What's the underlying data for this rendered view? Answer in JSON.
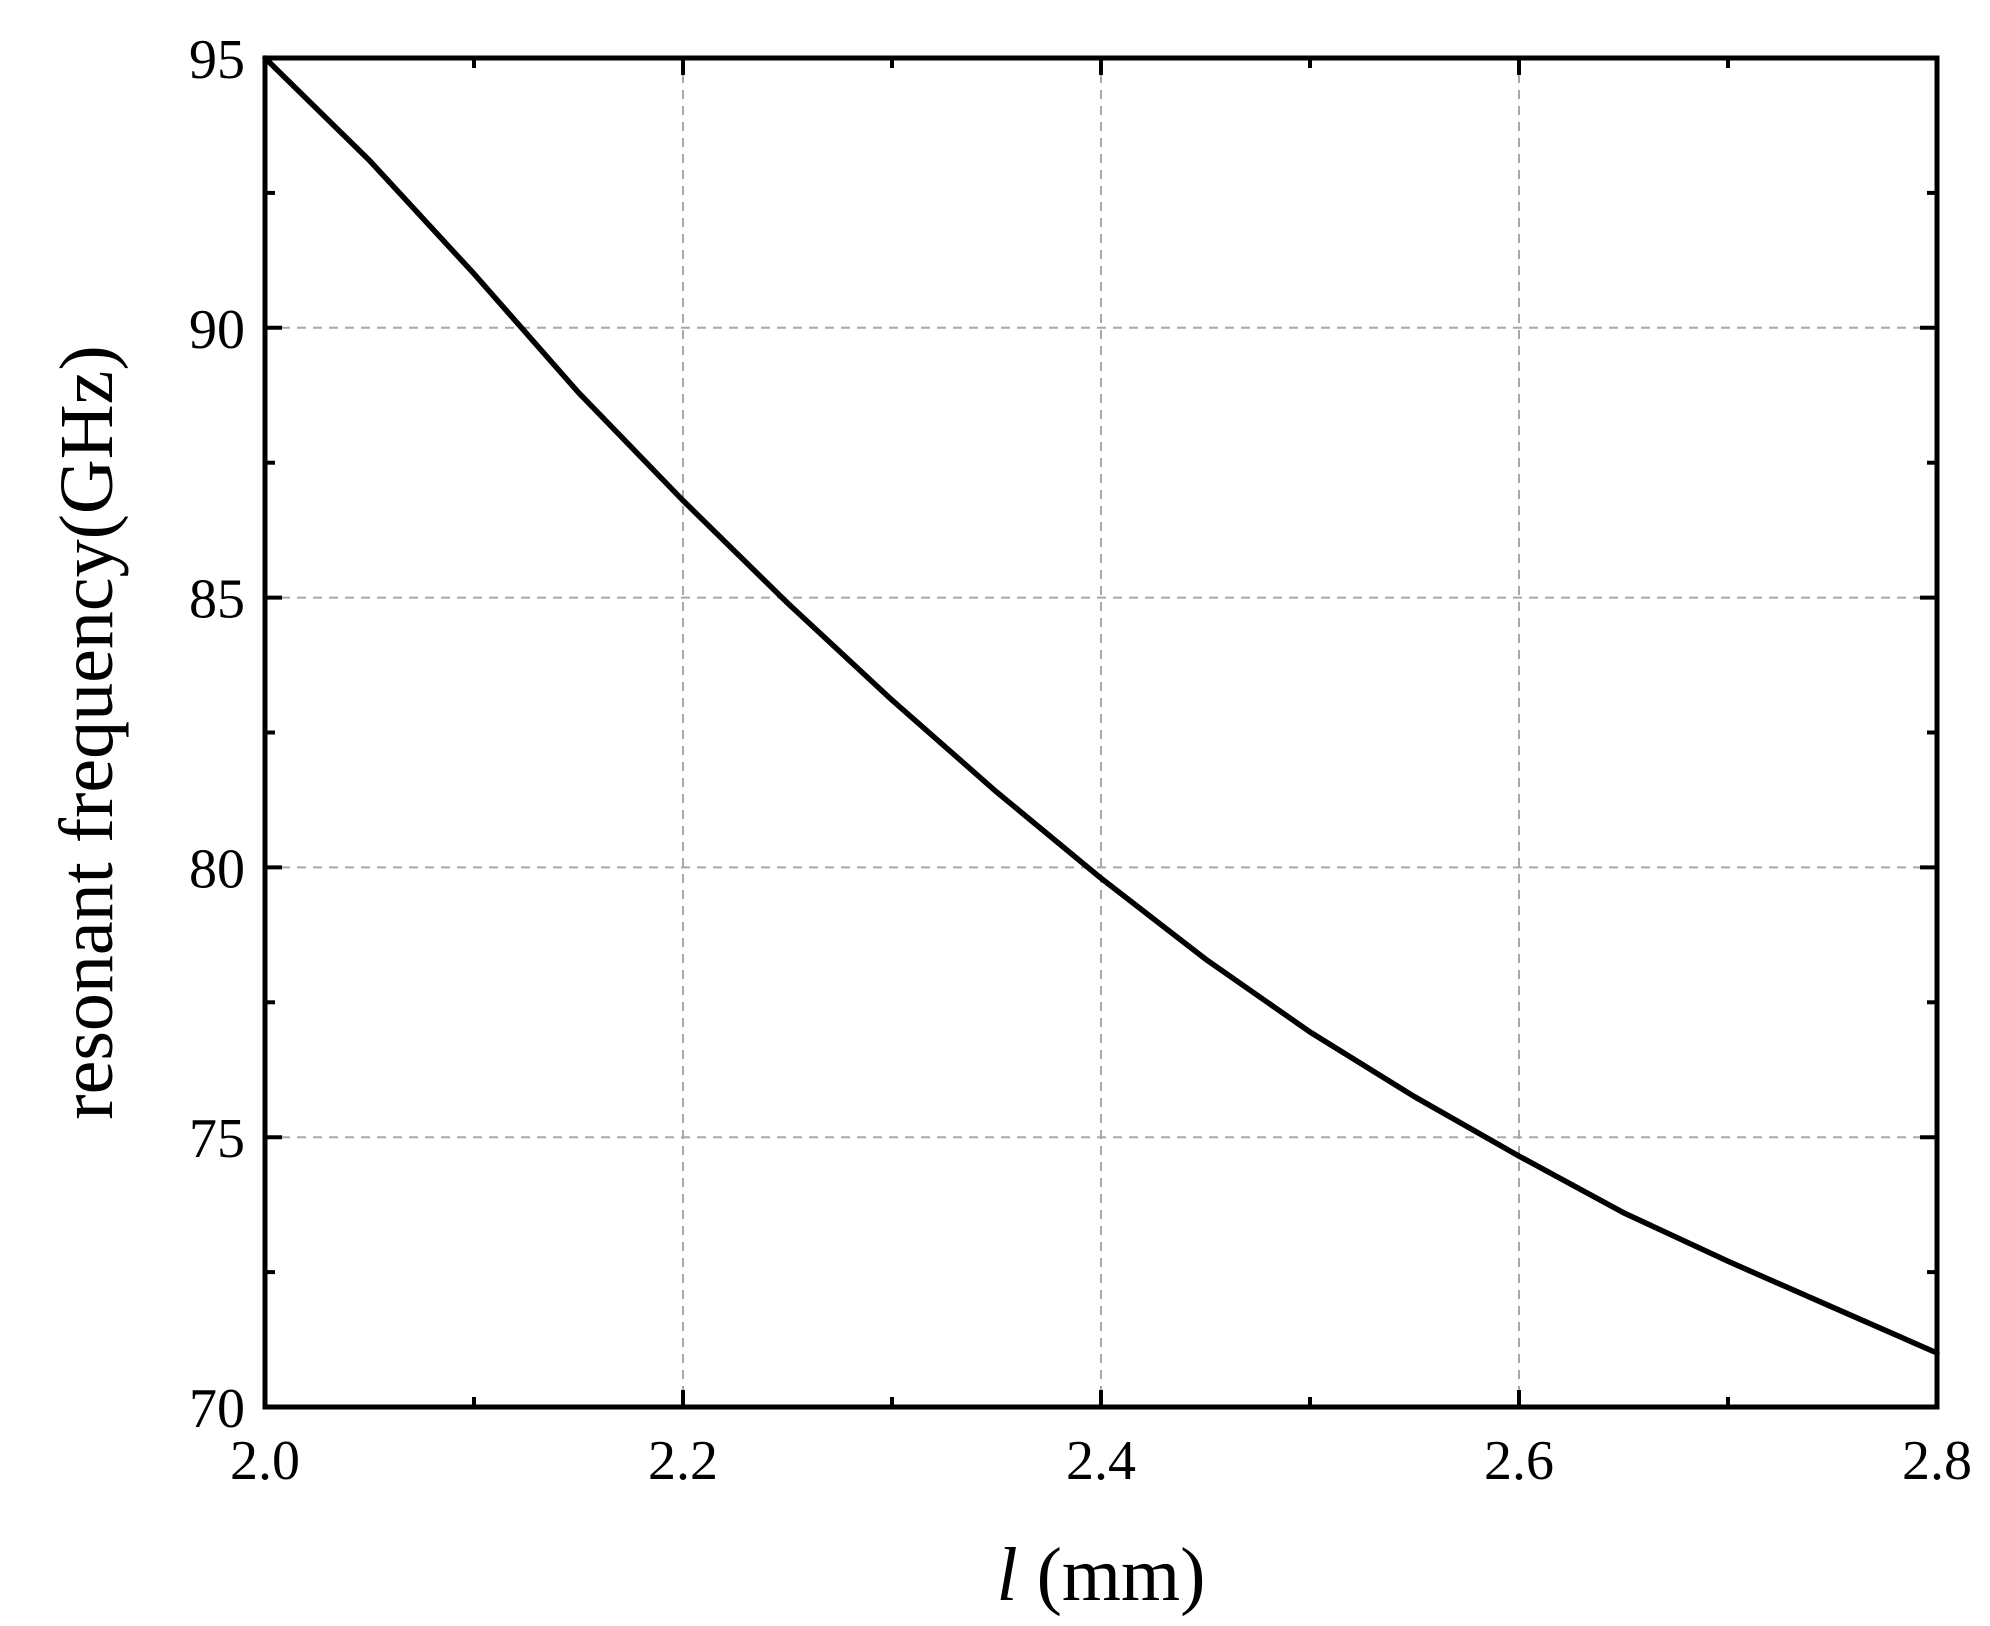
{
  "chart_data": {
    "type": "line",
    "xlabel_var": "l",
    "xlabel_unit": " (mm)",
    "ylabel": "resonant frequency(GHz)",
    "xlim": [
      2.0,
      2.8
    ],
    "ylim": [
      70,
      95
    ],
    "x_ticks": [
      "2.0",
      "2.2",
      "2.4",
      "2.6",
      "2.8"
    ],
    "y_ticks": [
      "70",
      "75",
      "80",
      "85",
      "90",
      "95"
    ],
    "x_tick_values": [
      2.0,
      2.2,
      2.4,
      2.6,
      2.8
    ],
    "y_tick_values": [
      70,
      75,
      80,
      85,
      90,
      95
    ],
    "x_minor_tick_values": [
      2.1,
      2.3,
      2.5,
      2.7
    ],
    "y_minor_tick_values": [
      72.5,
      77.5,
      82.5,
      87.5,
      92.5
    ],
    "grid": true,
    "series": [
      {
        "x": [
          2.0,
          2.05,
          2.1,
          2.15,
          2.2,
          2.25,
          2.3,
          2.35,
          2.4,
          2.45,
          2.5,
          2.55,
          2.6,
          2.65,
          2.7,
          2.75,
          2.8
        ],
        "y": [
          95.0,
          93.1,
          91.0,
          88.8,
          86.8,
          84.9,
          83.1,
          81.4,
          79.8,
          78.3,
          76.95,
          75.75,
          74.65,
          73.6,
          72.7,
          71.85,
          71.0
        ]
      }
    ]
  }
}
